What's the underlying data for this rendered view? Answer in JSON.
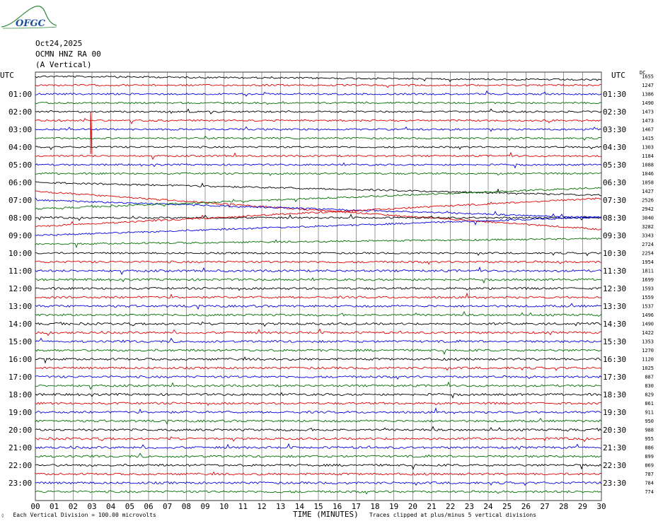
{
  "logo": {
    "text": "OFGC"
  },
  "header": {
    "date": "Oct24,2025",
    "station": "OCMN HNZ RA 00",
    "component": "(A Vertical)"
  },
  "footer": {
    "scale_note": "Each Vertical Division =  100.00 microvolts",
    "clip_note": "Traces clipped at plus/minus 5 vertical divisions"
  },
  "chart_data": {
    "type": "line",
    "title": "",
    "xlabel": "TIME (MINUTES)",
    "ylabel": "UTC",
    "left_axis_title": "UTC",
    "right_axis_title": "UTC",
    "xlim": [
      0,
      30
    ],
    "x_ticks": [
      "00",
      "01",
      "02",
      "03",
      "04",
      "05",
      "06",
      "07",
      "08",
      "09",
      "10",
      "11",
      "12",
      "13",
      "14",
      "15",
      "16",
      "17",
      "18",
      "19",
      "20",
      "21",
      "22",
      "23",
      "24",
      "25",
      "26",
      "27",
      "28",
      "29",
      "30"
    ],
    "left_labels": [
      "01:00",
      "02:00",
      "03:00",
      "04:00",
      "05:00",
      "06:00",
      "07:00",
      "08:00",
      "09:00",
      "10:00",
      "11:00",
      "12:00",
      "13:00",
      "14:00",
      "15:00",
      "16:00",
      "17:00",
      "18:00",
      "19:00",
      "20:00",
      "21:00",
      "22:00",
      "23:00"
    ],
    "right_labels": [
      "01:30",
      "02:30",
      "03:30",
      "04:30",
      "05:30",
      "06:30",
      "07:30",
      "08:30",
      "09:30",
      "10:30",
      "11:30",
      "12:30",
      "13:30",
      "14:30",
      "15:30",
      "16:30",
      "17:30",
      "18:30",
      "19:30",
      "20:30",
      "21:30",
      "22:30",
      "23:30"
    ],
    "right_counts": [
      "1655",
      "1247",
      "1386",
      "1490",
      "1473",
      "1473",
      "1467",
      "1415",
      "1303",
      "1184",
      "1088",
      "1046",
      "1058",
      "1427",
      "2526",
      "2942",
      "3040",
      "3282",
      "3343",
      "2724",
      "2254",
      "1954",
      "1811",
      "1699",
      "1593",
      "1559",
      "1537",
      "1496",
      "1490",
      "1422",
      "1353",
      "1270",
      "1120",
      "1025",
      "887",
      "830",
      "829",
      "861",
      "911",
      "950",
      "988",
      "955",
      "886",
      "899",
      "869",
      "787",
      "784",
      "774"
    ],
    "right_count_header": "DC",
    "trace_colors": [
      "#000000",
      "#e00000",
      "#0000e0",
      "#007000"
    ],
    "traces_per_hour": 2,
    "trace_count": 48,
    "grid": true,
    "clipping_divisions": 5,
    "microvolts_per_division": 100.0
  }
}
